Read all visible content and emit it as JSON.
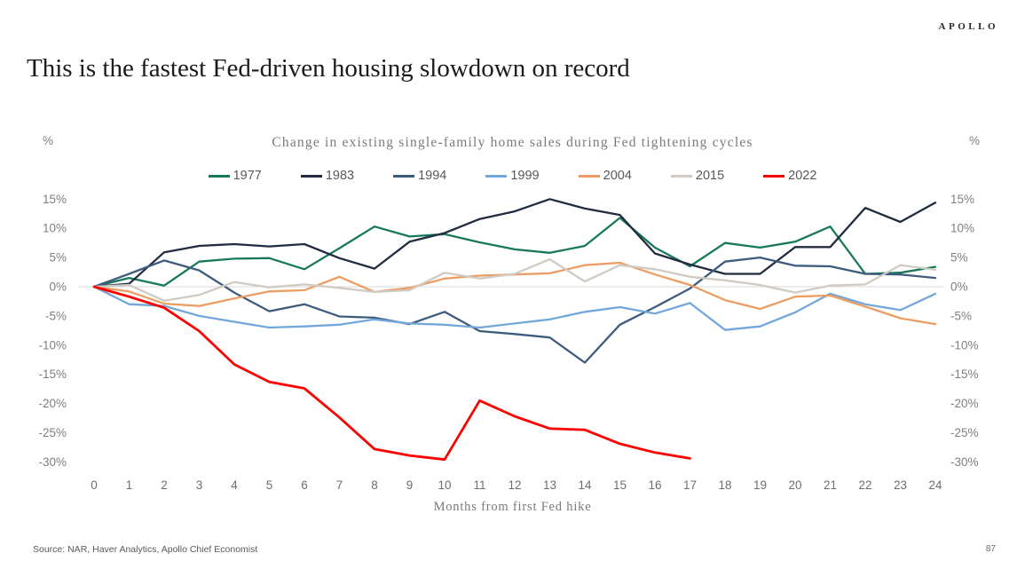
{
  "page": {
    "brand": "APOLLO",
    "title": "This is the fastest Fed-driven housing slowdown on record",
    "source": "Source: NAR, Haver Analytics, Apollo Chief Economist",
    "page_number": "87"
  },
  "chart_data": {
    "type": "line",
    "title": "Change in existing single-family home sales during Fed tightening cycles",
    "xlabel": "Months from first Fed hike",
    "unit_label": "%",
    "legend_position": "top",
    "grid": "zero-line-only",
    "zero_line_color": "#d9d9d9",
    "axis_text_color": "#7f7f7f",
    "x": [
      0,
      1,
      2,
      3,
      4,
      5,
      6,
      7,
      8,
      9,
      10,
      11,
      12,
      13,
      14,
      15,
      16,
      17,
      18,
      19,
      20,
      21,
      22,
      23,
      24
    ],
    "y_ticks": [
      15,
      10,
      5,
      0,
      -5,
      -10,
      -15,
      -20,
      -25,
      -30
    ],
    "y_tick_labels": [
      "15%",
      "10%",
      "5%",
      "0%",
      "-5%",
      "-10%",
      "-15%",
      "-20%",
      "-25%",
      "-30%"
    ],
    "ylim": [
      -30,
      15
    ],
    "series": [
      {
        "name": "1977",
        "color": "#17795A",
        "values": [
          0,
          1.5,
          0.2,
          4.3,
          4.8,
          4.9,
          3.0,
          6.6,
          10.3,
          8.6,
          9.0,
          7.6,
          6.4,
          5.8,
          7.0,
          11.8,
          6.7,
          3.5,
          7.5,
          6.7,
          7.7,
          10.3,
          2.2,
          2.4,
          3.4
        ]
      },
      {
        "name": "1983",
        "color": "#212C40",
        "values": [
          0,
          0.5,
          5.9,
          7.0,
          7.3,
          6.9,
          7.3,
          4.9,
          3.1,
          7.7,
          9.2,
          11.6,
          12.9,
          15.0,
          13.4,
          12.3,
          5.7,
          3.8,
          2.2,
          2.2,
          6.8,
          6.8,
          13.5,
          11.1,
          14.4
        ]
      },
      {
        "name": "1994",
        "color": "#3D5C7D",
        "values": [
          0,
          2.2,
          4.5,
          2.8,
          -1.0,
          -4.2,
          -3.0,
          -5.1,
          -5.3,
          -6.4,
          -4.3,
          -7.6,
          -8.1,
          -8.7,
          -13.0,
          -6.5,
          -3.5,
          -0.3,
          4.3,
          5.0,
          3.6,
          3.5,
          2.2,
          2.1,
          1.5
        ]
      },
      {
        "name": "1999",
        "color": "#73A7DB",
        "values": [
          0,
          -3.0,
          -3.3,
          -5.0,
          -6.0,
          -7.0,
          -6.8,
          -6.5,
          -5.6,
          -6.3,
          -6.5,
          -7.0,
          -6.3,
          -5.6,
          -4.3,
          -3.5,
          -4.6,
          -2.8,
          -7.4,
          -6.8,
          -4.4,
          -1.2,
          -3.0,
          -4.0,
          -1.2
        ]
      },
      {
        "name": "2004",
        "color": "#EC9D63",
        "values": [
          0,
          -0.8,
          -2.9,
          -3.3,
          -2.0,
          -0.8,
          -0.6,
          1.7,
          -0.9,
          -0.2,
          1.4,
          1.9,
          2.1,
          2.3,
          3.7,
          4.1,
          2.1,
          0.3,
          -2.3,
          -3.8,
          -1.7,
          -1.5,
          -3.4,
          -5.4,
          -6.4
        ]
      },
      {
        "name": "2015",
        "color": "#D0CAC3",
        "values": [
          0,
          0.3,
          -2.4,
          -1.4,
          0.8,
          -0.1,
          0.4,
          -0.2,
          -0.9,
          -0.6,
          2.4,
          1.4,
          2.2,
          4.7,
          0.9,
          3.7,
          3.0,
          1.7,
          1.1,
          0.3,
          -1.0,
          0.2,
          0.4,
          3.7,
          2.9
        ]
      },
      {
        "name": "2022",
        "color": "#FF0000",
        "values": [
          0,
          -1.7,
          -3.6,
          -7.6,
          -13.3,
          -16.3,
          -17.4,
          -22.4,
          -27.8,
          -28.9,
          -29.6,
          -19.5,
          -22.2,
          -24.3,
          -24.5,
          -26.9,
          -28.4,
          -29.4
        ]
      }
    ]
  }
}
